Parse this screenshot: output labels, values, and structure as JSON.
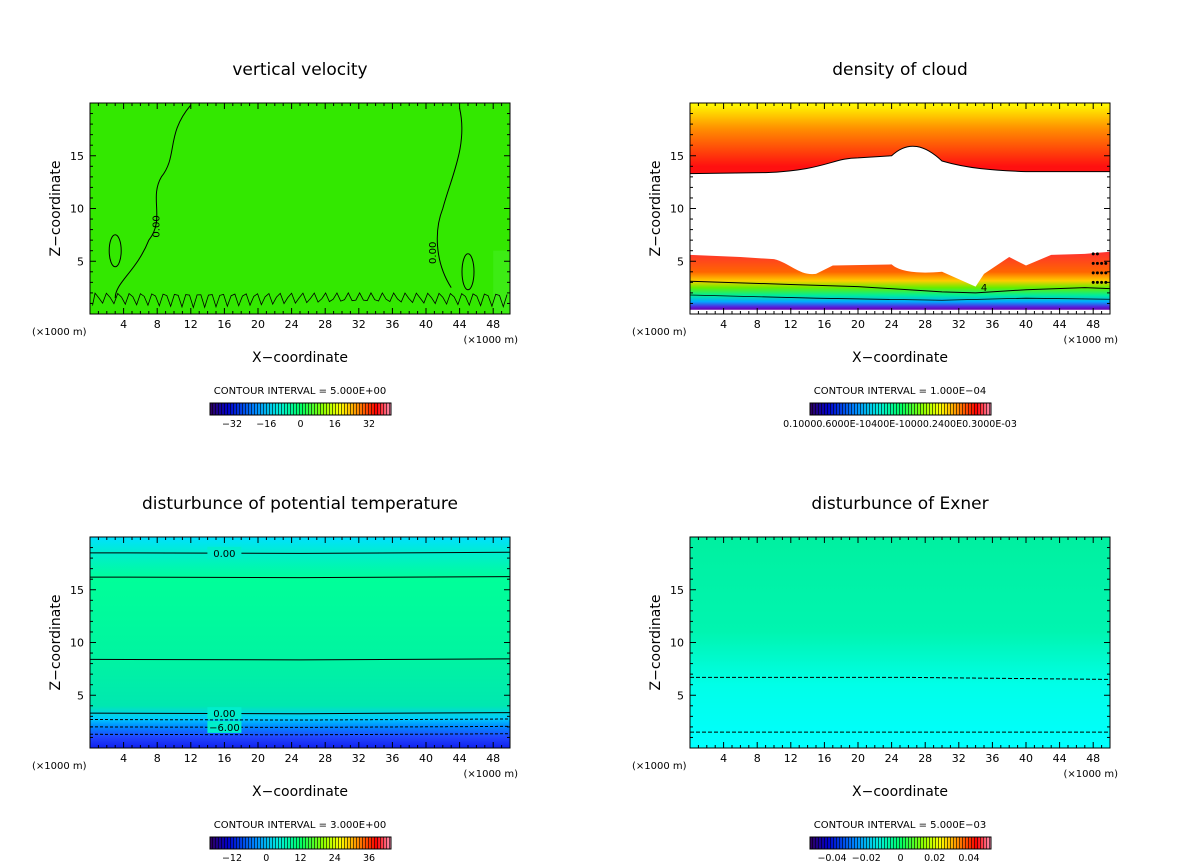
{
  "chart_data": [
    {
      "type": "heatmap",
      "title": "vertical velocity",
      "xlabel": "X−coordinate",
      "ylabel": "Z−coordinate",
      "x_unit_left": "(×1000 m)",
      "x_unit_right": "(×1000 m)",
      "xlim": [
        0,
        50
      ],
      "ylim": [
        0,
        20
      ],
      "x_ticks": [
        4,
        8,
        12,
        16,
        20,
        24,
        28,
        32,
        36,
        40,
        44,
        48
      ],
      "y_ticks": [
        5,
        10,
        15
      ],
      "contour_interval": "CONTOUR INTERVAL = 5.000E+00",
      "colorbar_labels": [
        "−32",
        "−16",
        "0",
        "16",
        "32"
      ],
      "contour_labels": [
        "0.00",
        "0.00"
      ],
      "background_color": "#33e800"
    },
    {
      "type": "heatmap",
      "title": "density of cloud",
      "xlabel": "X−coordinate",
      "ylabel": "Z−coordinate",
      "x_unit_left": "(×1000 m)",
      "x_unit_right": "(×1000 m)",
      "xlim": [
        0,
        50
      ],
      "ylim": [
        0,
        20
      ],
      "x_ticks": [
        4,
        8,
        12,
        16,
        20,
        24,
        28,
        32,
        36,
        40,
        44,
        48
      ],
      "y_ticks": [
        5,
        10,
        15
      ],
      "contour_interval": "CONTOUR INTERVAL = 1.000E−04",
      "colorbar_labels_text": "0.10000.6000E-10400E-10000.2400E0.3000E-03",
      "contour_labels": [
        "4"
      ]
    },
    {
      "type": "heatmap",
      "title": "disturbunce of potential temperature",
      "xlabel": "X−coordinate",
      "ylabel": "Z−coordinate",
      "x_unit_left": "(×1000 m)",
      "x_unit_right": "(×1000 m)",
      "xlim": [
        0,
        50
      ],
      "ylim": [
        0,
        20
      ],
      "x_ticks": [
        4,
        8,
        12,
        16,
        20,
        24,
        28,
        32,
        36,
        40,
        44,
        48
      ],
      "y_ticks": [
        5,
        10,
        15
      ],
      "contour_interval": "CONTOUR INTERVAL = 3.000E+00",
      "colorbar_labels": [
        "−12",
        "0",
        "12",
        "24",
        "36"
      ],
      "contour_labels": [
        "0.00",
        "0.00",
        "−6.00"
      ]
    },
    {
      "type": "heatmap",
      "title": "disturbunce of Exner",
      "xlabel": "X−coordinate",
      "ylabel": "Z−coordinate",
      "x_unit_left": "(×1000 m)",
      "x_unit_right": "(×1000 m)",
      "xlim": [
        0,
        50
      ],
      "ylim": [
        0,
        20
      ],
      "x_ticks": [
        4,
        8,
        12,
        16,
        20,
        24,
        28,
        32,
        36,
        40,
        44,
        48
      ],
      "y_ticks": [
        5,
        10,
        15
      ],
      "contour_interval": "CONTOUR INTERVAL = 5.000E−03",
      "colorbar_labels": [
        "−0.04",
        "−0.02",
        "0",
        "0.02",
        "0.04"
      ],
      "contour_labels": []
    }
  ]
}
